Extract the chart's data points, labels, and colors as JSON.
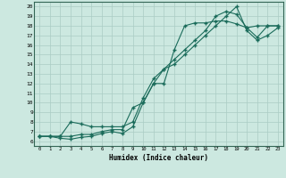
{
  "xlabel": "Humidex (Indice chaleur)",
  "bg_color": "#cce8e0",
  "grid_color": "#aaccc4",
  "line_color": "#1a6b5a",
  "xlim": [
    -0.5,
    23.5
  ],
  "ylim": [
    5.5,
    20.5
  ],
  "xticks": [
    0,
    1,
    2,
    3,
    4,
    5,
    6,
    7,
    8,
    9,
    10,
    11,
    12,
    13,
    14,
    15,
    16,
    17,
    18,
    19,
    20,
    21,
    22,
    23
  ],
  "yticks": [
    6,
    7,
    8,
    9,
    10,
    11,
    12,
    13,
    14,
    15,
    16,
    17,
    18,
    19,
    20
  ],
  "line1_x": [
    0,
    1,
    2,
    3,
    4,
    5,
    6,
    7,
    8,
    9,
    10,
    11,
    12,
    13,
    14,
    15,
    16,
    17,
    18,
    19,
    20,
    21,
    22,
    23
  ],
  "line1_y": [
    6.5,
    6.5,
    6.5,
    6.5,
    6.7,
    6.7,
    7.0,
    7.2,
    7.2,
    9.5,
    10.0,
    12.0,
    12.0,
    15.5,
    18.0,
    18.3,
    18.3,
    18.5,
    18.5,
    18.2,
    17.8,
    18.0,
    18.0,
    18.0
  ],
  "line2_x": [
    0,
    1,
    2,
    3,
    4,
    5,
    6,
    7,
    8,
    9,
    10,
    11,
    12,
    13,
    14,
    15,
    16,
    17,
    18,
    19,
    20,
    21,
    22,
    23
  ],
  "line2_y": [
    6.5,
    6.5,
    6.3,
    6.2,
    6.4,
    6.5,
    6.8,
    7.0,
    6.8,
    7.5,
    10.0,
    12.0,
    13.5,
    14.5,
    15.5,
    16.5,
    17.5,
    19.0,
    19.5,
    19.2,
    17.8,
    16.8,
    18.0,
    18.0
  ],
  "line3_x": [
    0,
    1,
    2,
    3,
    4,
    5,
    6,
    7,
    8,
    9,
    10,
    11,
    12,
    13,
    14,
    15,
    16,
    17,
    18,
    19,
    20,
    21,
    22,
    23
  ],
  "line3_y": [
    6.5,
    6.5,
    6.5,
    8.0,
    7.8,
    7.5,
    7.5,
    7.5,
    7.5,
    8.0,
    10.5,
    12.5,
    13.5,
    14.0,
    15.0,
    16.0,
    17.0,
    18.0,
    19.0,
    20.0,
    17.5,
    16.5,
    17.0,
    17.8
  ]
}
